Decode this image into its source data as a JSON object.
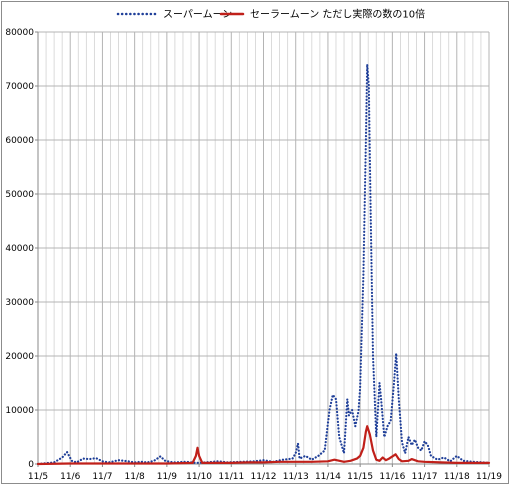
{
  "chart_data": {
    "type": "line",
    "title": "",
    "xlabel": "",
    "ylabel": "",
    "ylim": [
      0,
      80000
    ],
    "yticks": [
      0,
      10000,
      20000,
      30000,
      40000,
      50000,
      60000,
      70000,
      80000
    ],
    "ytick_labels": [
      "0",
      "10000",
      "20000",
      "30000",
      "40000",
      "50000",
      "60000",
      "70000",
      "80000"
    ],
    "xlim": [
      0,
      14
    ],
    "xticks": [
      0,
      1,
      2,
      3,
      4,
      5,
      6,
      7,
      8,
      9,
      10,
      11,
      12,
      13,
      14
    ],
    "xtick_labels": [
      "11/5",
      "11/6",
      "11/7",
      "11/8",
      "11/9",
      "11/10",
      "11/11",
      "11/12",
      "11/13",
      "11/14",
      "11/15",
      "11/16",
      "11/17",
      "11/18",
      "11/19"
    ],
    "grid": true,
    "legend_position": "top-center",
    "series": [
      {
        "name": "スーパームーン",
        "color": "#1f3f99",
        "style": "dotted",
        "points": [
          [
            0.0,
            0
          ],
          [
            0.5,
            300
          ],
          [
            0.75,
            1200
          ],
          [
            0.9,
            2200
          ],
          [
            1.05,
            600
          ],
          [
            1.2,
            300
          ],
          [
            1.4,
            1000
          ],
          [
            1.6,
            900
          ],
          [
            1.8,
            1100
          ],
          [
            2.0,
            500
          ],
          [
            2.2,
            300
          ],
          [
            2.5,
            700
          ],
          [
            2.8,
            500
          ],
          [
            3.0,
            300
          ],
          [
            3.2,
            400
          ],
          [
            3.4,
            300
          ],
          [
            3.6,
            600
          ],
          [
            3.8,
            1400
          ],
          [
            3.95,
            600
          ],
          [
            4.2,
            300
          ],
          [
            4.6,
            400
          ],
          [
            4.9,
            200
          ],
          [
            5.2,
            300
          ],
          [
            5.6,
            500
          ],
          [
            5.9,
            300
          ],
          [
            6.3,
            400
          ],
          [
            6.7,
            500
          ],
          [
            7.0,
            700
          ],
          [
            7.3,
            400
          ],
          [
            7.6,
            800
          ],
          [
            7.9,
            1000
          ],
          [
            8.0,
            2000
          ],
          [
            8.07,
            3800
          ],
          [
            8.12,
            1000
          ],
          [
            8.3,
            1500
          ],
          [
            8.5,
            800
          ],
          [
            8.7,
            1500
          ],
          [
            8.9,
            2500
          ],
          [
            9.05,
            10000
          ],
          [
            9.15,
            12800
          ],
          [
            9.25,
            12000
          ],
          [
            9.35,
            5000
          ],
          [
            9.5,
            2000
          ],
          [
            9.6,
            12000
          ],
          [
            9.65,
            9000
          ],
          [
            9.75,
            10000
          ],
          [
            9.85,
            7000
          ],
          [
            9.95,
            9800
          ],
          [
            10.0,
            14000
          ],
          [
            10.1,
            35000
          ],
          [
            10.18,
            60000
          ],
          [
            10.22,
            74000
          ],
          [
            10.27,
            70000
          ],
          [
            10.33,
            45000
          ],
          [
            10.4,
            20000
          ],
          [
            10.5,
            5000
          ],
          [
            10.6,
            15000
          ],
          [
            10.65,
            12000
          ],
          [
            10.75,
            5000
          ],
          [
            10.85,
            7000
          ],
          [
            10.95,
            8000
          ],
          [
            11.05,
            15000
          ],
          [
            11.12,
            20500
          ],
          [
            11.2,
            12000
          ],
          [
            11.3,
            4000
          ],
          [
            11.4,
            2000
          ],
          [
            11.5,
            5000
          ],
          [
            11.6,
            3500
          ],
          [
            11.7,
            4500
          ],
          [
            11.8,
            3000
          ],
          [
            11.9,
            2500
          ],
          [
            12.0,
            4200
          ],
          [
            12.1,
            3500
          ],
          [
            12.2,
            1500
          ],
          [
            12.4,
            800
          ],
          [
            12.6,
            1200
          ],
          [
            12.8,
            500
          ],
          [
            13.0,
            1500
          ],
          [
            13.2,
            600
          ],
          [
            13.5,
            400
          ],
          [
            13.8,
            300
          ],
          [
            14.0,
            200
          ]
        ]
      },
      {
        "name": "セーラームーン ただし実際の数の10倍",
        "color": "#c0201a",
        "style": "solid",
        "points": [
          [
            0.0,
            0
          ],
          [
            1.0,
            100
          ],
          [
            2.0,
            100
          ],
          [
            3.0,
            100
          ],
          [
            4.0,
            100
          ],
          [
            4.8,
            200
          ],
          [
            4.9,
            1500
          ],
          [
            4.95,
            3000
          ],
          [
            5.0,
            1500
          ],
          [
            5.1,
            200
          ],
          [
            5.5,
            200
          ],
          [
            6.0,
            200
          ],
          [
            6.5,
            300
          ],
          [
            7.0,
            300
          ],
          [
            7.5,
            400
          ],
          [
            8.0,
            400
          ],
          [
            8.5,
            400
          ],
          [
            9.0,
            500
          ],
          [
            9.2,
            800
          ],
          [
            9.5,
            400
          ],
          [
            9.7,
            600
          ],
          [
            9.9,
            1000
          ],
          [
            10.0,
            1500
          ],
          [
            10.1,
            3000
          ],
          [
            10.18,
            6000
          ],
          [
            10.22,
            7000
          ],
          [
            10.3,
            5500
          ],
          [
            10.4,
            2500
          ],
          [
            10.5,
            800
          ],
          [
            10.6,
            600
          ],
          [
            10.7,
            1200
          ],
          [
            10.8,
            700
          ],
          [
            10.9,
            1000
          ],
          [
            11.0,
            1400
          ],
          [
            11.1,
            1800
          ],
          [
            11.2,
            900
          ],
          [
            11.3,
            500
          ],
          [
            11.5,
            600
          ],
          [
            11.6,
            900
          ],
          [
            11.8,
            500
          ],
          [
            12.0,
            400
          ],
          [
            12.5,
            300
          ],
          [
            13.0,
            200
          ],
          [
            13.5,
            200
          ],
          [
            14.0,
            200
          ]
        ]
      }
    ]
  }
}
